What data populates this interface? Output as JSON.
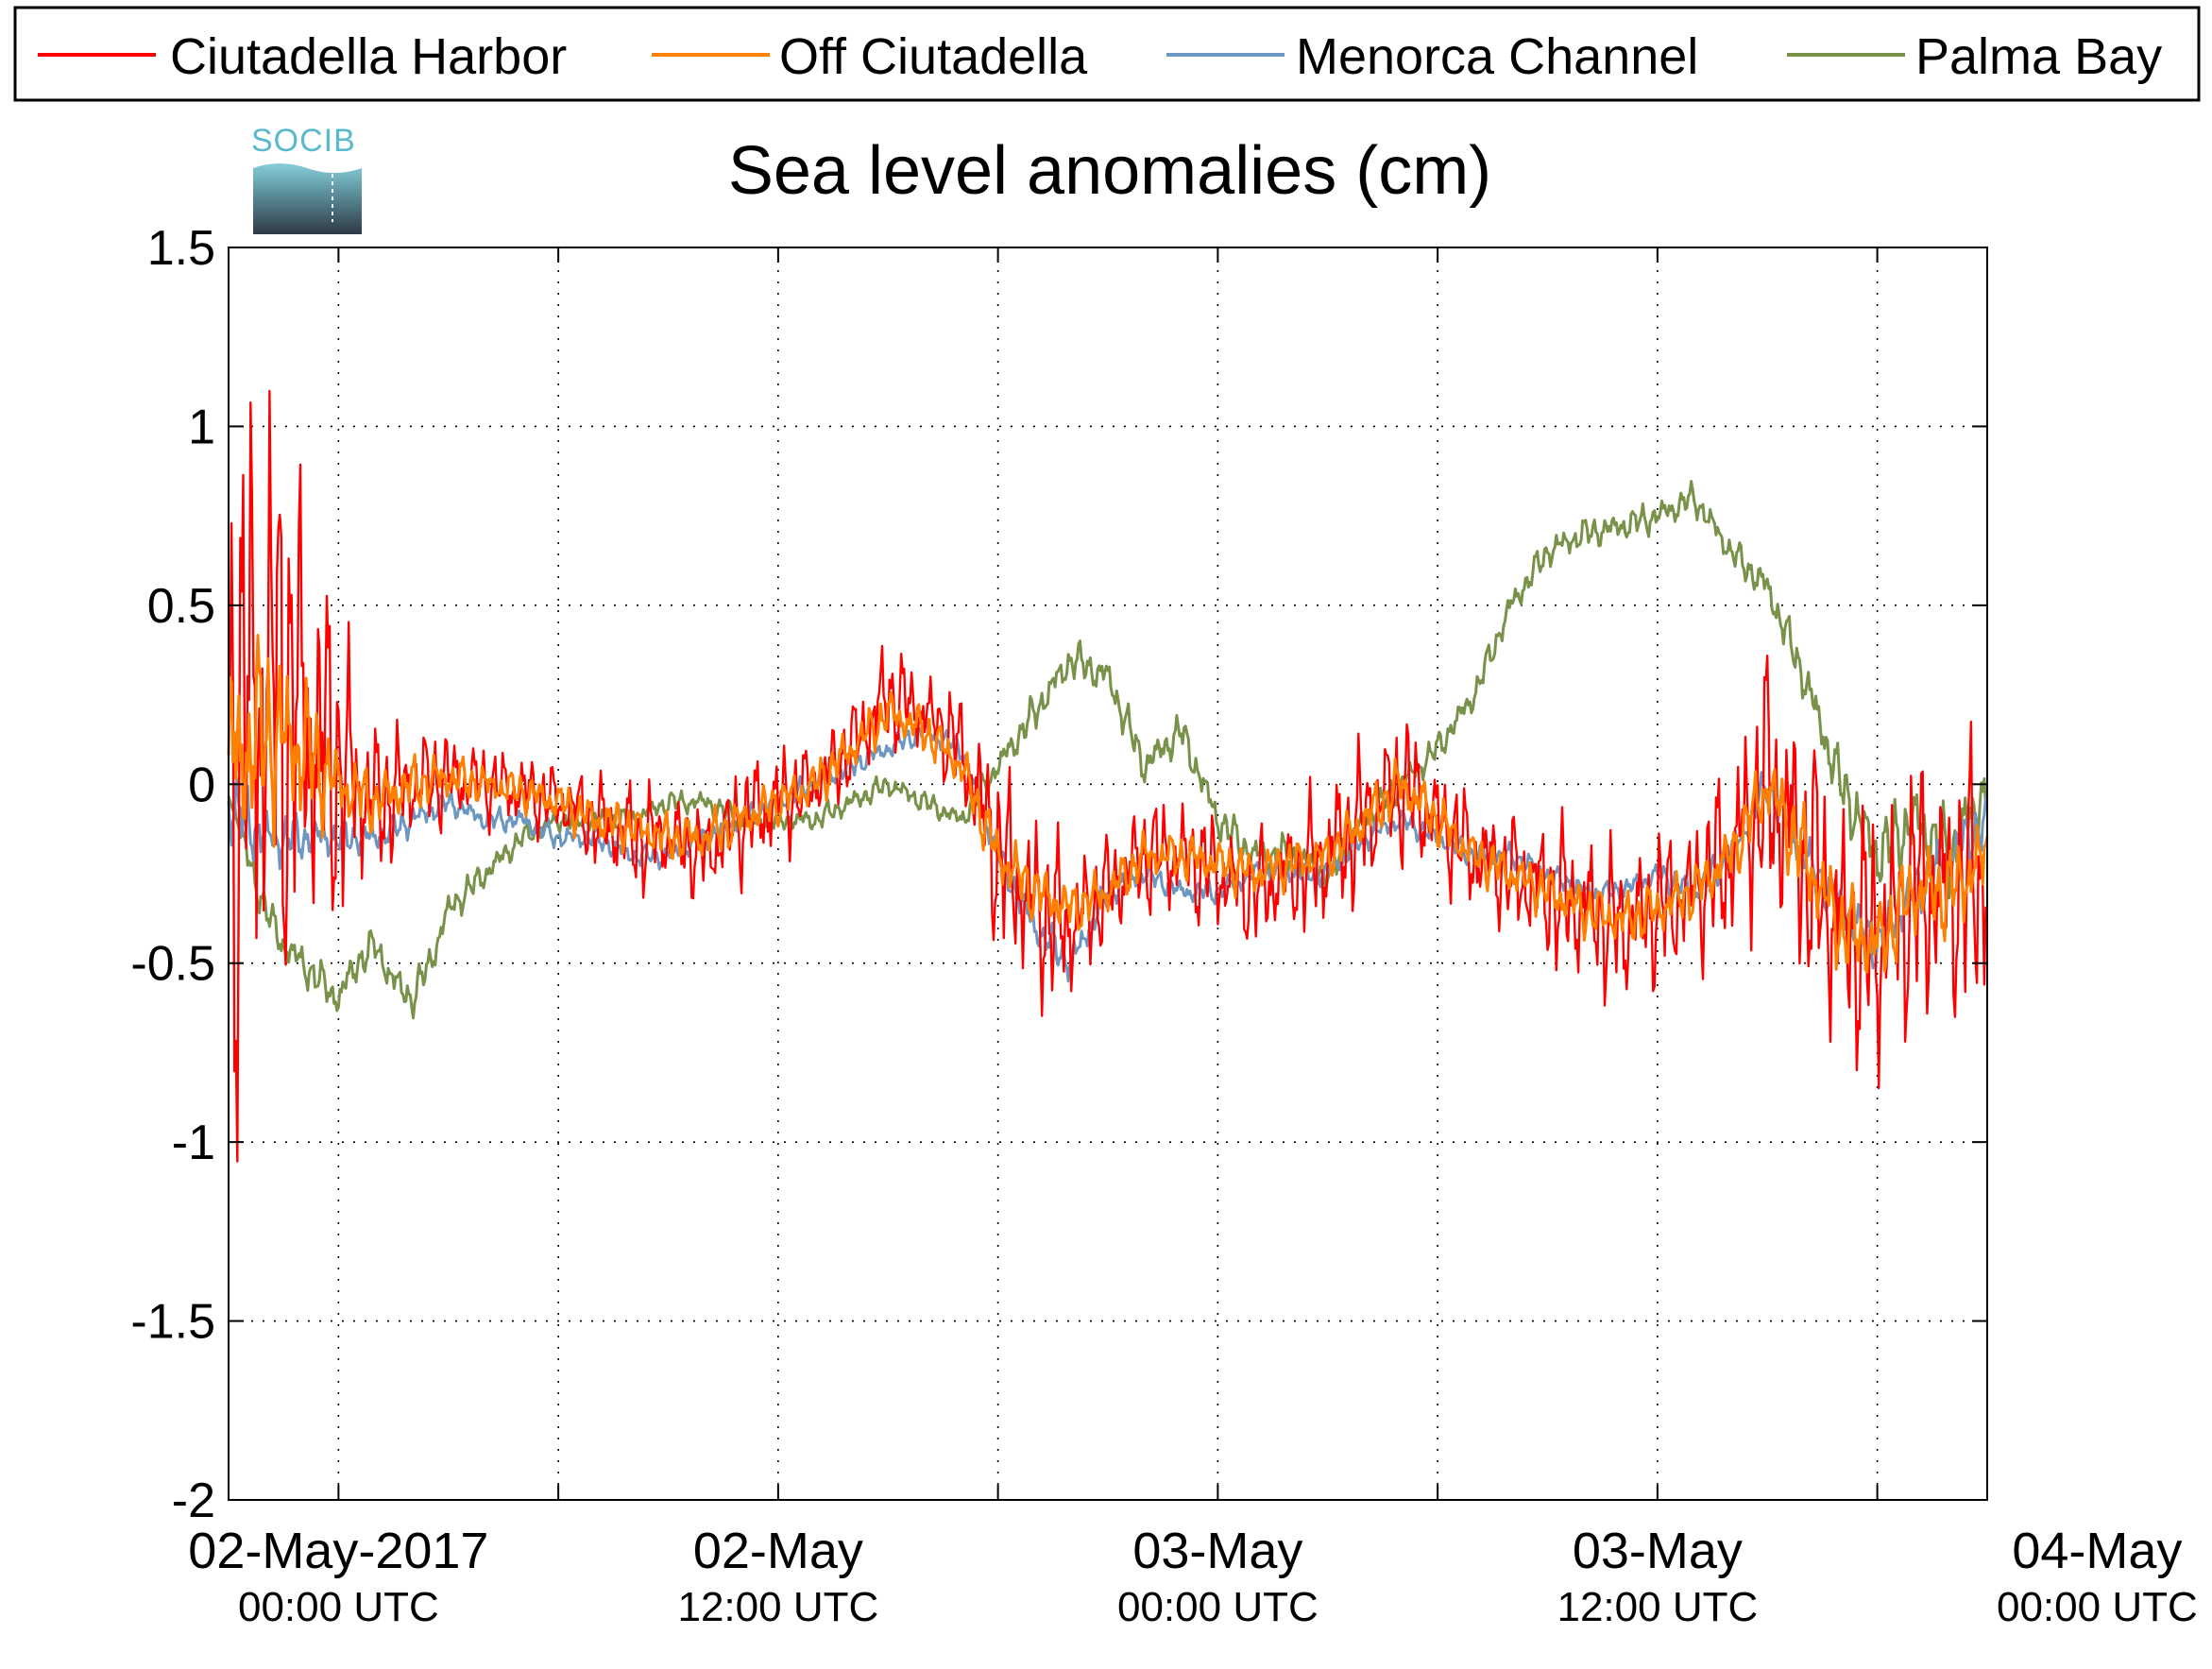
{
  "chart_data": {
    "type": "line",
    "title": "Sea level anomalies (cm)",
    "logo_text": "SOCIB",
    "xlabel": "",
    "ylabel": "",
    "ylim": [
      -2,
      1.5
    ],
    "yticks": [
      "1.5",
      "1",
      "0.5",
      "0",
      "-0.5",
      "-1",
      "-1.5",
      "-2"
    ],
    "ytick_values": [
      1.5,
      1,
      0.5,
      0,
      -0.5,
      -1,
      -1.5,
      -2
    ],
    "xlim_hours": [
      -3,
      45
    ],
    "xticks": [
      {
        "label": "02-May-2017",
        "sub": "00:00 UTC",
        "hour": 0
      },
      {
        "label": "02-May",
        "sub": "12:00 UTC",
        "hour": 12
      },
      {
        "label": "03-May",
        "sub": "00:00 UTC",
        "hour": 24
      },
      {
        "label": "03-May",
        "sub": "12:00 UTC",
        "hour": 36
      },
      {
        "label": "04-May",
        "sub": "00:00 UTC",
        "hour": 48
      }
    ],
    "grid": true,
    "legend_position": "top",
    "series": [
      {
        "name": "Ciutadella Harbor",
        "color": "#ff0000",
        "x_hours": [
          -3,
          -2.5,
          -2,
          -1.5,
          -1,
          -0.5,
          0,
          0.5,
          1,
          2,
          3,
          4,
          5,
          6,
          7,
          8,
          9,
          10,
          11,
          12,
          13,
          14,
          15,
          16,
          17,
          18,
          19,
          20,
          20.5,
          21,
          22,
          23,
          24,
          25,
          26,
          27,
          28,
          29,
          30,
          31,
          32,
          33,
          34,
          35,
          36,
          37,
          38,
          39,
          40,
          41,
          42,
          43,
          44,
          45
        ],
        "values": [
          0.0,
          0.2,
          0.3,
          0.25,
          0.2,
          0.1,
          0.05,
          0.0,
          -0.05,
          0.0,
          0.02,
          0.0,
          -0.02,
          -0.05,
          -0.1,
          -0.15,
          -0.15,
          -0.2,
          -0.1,
          -0.05,
          0.0,
          0.1,
          0.25,
          0.2,
          0.1,
          -0.2,
          -0.35,
          -0.4,
          -0.35,
          -0.3,
          -0.2,
          -0.2,
          -0.25,
          -0.3,
          -0.25,
          -0.2,
          -0.1,
          0.0,
          -0.1,
          -0.2,
          -0.25,
          -0.3,
          -0.35,
          -0.4,
          -0.35,
          -0.3,
          -0.2,
          0.0,
          -0.2,
          -0.4,
          -0.45,
          -0.3,
          -0.3,
          -0.25
        ],
        "amplitude": [
          1.0,
          0.95,
          0.85,
          0.75,
          0.65,
          0.55,
          0.4,
          0.3,
          0.2,
          0.15,
          0.12,
          0.1,
          0.1,
          0.1,
          0.12,
          0.15,
          0.12,
          0.12,
          0.15,
          0.15,
          0.1,
          0.12,
          0.15,
          0.1,
          0.15,
          0.25,
          0.25,
          0.2,
          0.15,
          0.15,
          0.15,
          0.15,
          0.15,
          0.15,
          0.15,
          0.2,
          0.2,
          0.2,
          0.15,
          0.15,
          0.15,
          0.2,
          0.2,
          0.2,
          0.2,
          0.2,
          0.25,
          0.35,
          0.35,
          0.35,
          0.35,
          0.35,
          0.35,
          0.35
        ]
      },
      {
        "name": "Off Ciutadella",
        "color": "#ff8000",
        "x_hours": [
          -3,
          -2,
          -1,
          0,
          1,
          2,
          3,
          4,
          5,
          6,
          7,
          8,
          9,
          10,
          11,
          12,
          13,
          14,
          15,
          16,
          17,
          18,
          19,
          20,
          21,
          22,
          23,
          24,
          25,
          26,
          27,
          28,
          29,
          30,
          31,
          32,
          33,
          34,
          35,
          36,
          37,
          38,
          39,
          40,
          41,
          42,
          43,
          44,
          45
        ],
        "values": [
          0.05,
          0.15,
          0.1,
          0.0,
          -0.05,
          0.0,
          0.02,
          0.0,
          -0.02,
          -0.05,
          -0.1,
          -0.12,
          -0.15,
          -0.15,
          -0.1,
          -0.05,
          0.0,
          0.1,
          0.2,
          0.15,
          0.05,
          -0.2,
          -0.3,
          -0.35,
          -0.3,
          -0.2,
          -0.2,
          -0.22,
          -0.25,
          -0.22,
          -0.2,
          -0.1,
          0.0,
          -0.1,
          -0.2,
          -0.25,
          -0.3,
          -0.35,
          -0.38,
          -0.35,
          -0.3,
          -0.2,
          0.0,
          -0.2,
          -0.4,
          -0.45,
          -0.3,
          -0.3,
          -0.2
        ],
        "amplitude": [
          0.3,
          0.25,
          0.2,
          0.1,
          0.08,
          0.07,
          0.06,
          0.05,
          0.05,
          0.05,
          0.06,
          0.06,
          0.06,
          0.06,
          0.06,
          0.06,
          0.06,
          0.06,
          0.06,
          0.06,
          0.06,
          0.08,
          0.08,
          0.07,
          0.06,
          0.06,
          0.06,
          0.06,
          0.06,
          0.06,
          0.06,
          0.07,
          0.07,
          0.07,
          0.06,
          0.06,
          0.06,
          0.07,
          0.07,
          0.07,
          0.07,
          0.08,
          0.1,
          0.12,
          0.12,
          0.12,
          0.12,
          0.12,
          0.12
        ]
      },
      {
        "name": "Menorca Channel",
        "color": "#6b97c0",
        "x_hours": [
          -3,
          -2,
          -1,
          0,
          1,
          2,
          3,
          4,
          5,
          6,
          7,
          8,
          9,
          10,
          11,
          12,
          13,
          14,
          15,
          16,
          17,
          18,
          19,
          20,
          21,
          22,
          23,
          24,
          25,
          26,
          27,
          28,
          29,
          30,
          31,
          32,
          33,
          34,
          35,
          36,
          37,
          38,
          39,
          40,
          41,
          42,
          43,
          44,
          45
        ],
        "values": [
          -0.05,
          -0.15,
          -0.15,
          -0.15,
          -0.15,
          -0.1,
          -0.05,
          -0.1,
          -0.1,
          -0.15,
          -0.15,
          -0.2,
          -0.2,
          -0.15,
          -0.1,
          -0.05,
          0.0,
          0.05,
          0.1,
          0.15,
          0.1,
          -0.2,
          -0.4,
          -0.5,
          -0.3,
          -0.25,
          -0.3,
          -0.3,
          -0.25,
          -0.25,
          -0.25,
          -0.15,
          -0.1,
          -0.15,
          -0.2,
          -0.2,
          -0.25,
          -0.3,
          -0.3,
          -0.25,
          -0.3,
          -0.2,
          0.0,
          -0.2,
          -0.35,
          -0.45,
          -0.3,
          -0.2,
          -0.1
        ],
        "amplitude": [
          0.1,
          0.08,
          0.06,
          0.05,
          0.04,
          0.04,
          0.03,
          0.03,
          0.03,
          0.03,
          0.03,
          0.03,
          0.03,
          0.03,
          0.03,
          0.03,
          0.03,
          0.03,
          0.03,
          0.03,
          0.03,
          0.04,
          0.05,
          0.05,
          0.04,
          0.03,
          0.03,
          0.03,
          0.03,
          0.03,
          0.03,
          0.03,
          0.03,
          0.03,
          0.03,
          0.03,
          0.03,
          0.03,
          0.03,
          0.03,
          0.04,
          0.05,
          0.05,
          0.06,
          0.07,
          0.07,
          0.07,
          0.07,
          0.07
        ]
      },
      {
        "name": "Palma Bay",
        "color": "#79924a",
        "x_hours": [
          -3,
          -2.5,
          -2,
          -1.5,
          -1,
          -0.5,
          0,
          0.5,
          1,
          1.5,
          2,
          2.5,
          3,
          4,
          5,
          6,
          7,
          8,
          9,
          10,
          11,
          12,
          13,
          14,
          15,
          16,
          17,
          18,
          19,
          20,
          21,
          22,
          23,
          24,
          25,
          26,
          27,
          28,
          29,
          30,
          31,
          32,
          33,
          34,
          35,
          36,
          37,
          38,
          39,
          40,
          41,
          42,
          43,
          44,
          45
        ],
        "values": [
          0.0,
          -0.2,
          -0.35,
          -0.45,
          -0.5,
          -0.55,
          -0.6,
          -0.5,
          -0.45,
          -0.55,
          -0.6,
          -0.5,
          -0.35,
          -0.25,
          -0.15,
          -0.1,
          -0.1,
          -0.1,
          -0.05,
          -0.05,
          -0.1,
          -0.1,
          -0.1,
          -0.05,
          0.0,
          -0.05,
          -0.1,
          0.05,
          0.2,
          0.35,
          0.3,
          0.05,
          0.15,
          -0.1,
          -0.2,
          -0.2,
          -0.25,
          -0.1,
          0.0,
          0.1,
          0.25,
          0.5,
          0.65,
          0.7,
          0.72,
          0.75,
          0.8,
          0.65,
          0.55,
          0.3,
          0.0,
          -0.2,
          -0.1,
          -0.2,
          0.0
        ],
        "amplitude": [
          0.05,
          0.05,
          0.05,
          0.05,
          0.05,
          0.05,
          0.05,
          0.05,
          0.05,
          0.05,
          0.05,
          0.05,
          0.04,
          0.04,
          0.03,
          0.03,
          0.03,
          0.03,
          0.03,
          0.03,
          0.03,
          0.03,
          0.03,
          0.03,
          0.03,
          0.03,
          0.03,
          0.04,
          0.05,
          0.05,
          0.05,
          0.05,
          0.05,
          0.05,
          0.05,
          0.05,
          0.05,
          0.04,
          0.04,
          0.04,
          0.04,
          0.04,
          0.04,
          0.04,
          0.04,
          0.04,
          0.04,
          0.04,
          0.05,
          0.06,
          0.08,
          0.1,
          0.1,
          0.1,
          0.1
        ]
      }
    ]
  }
}
